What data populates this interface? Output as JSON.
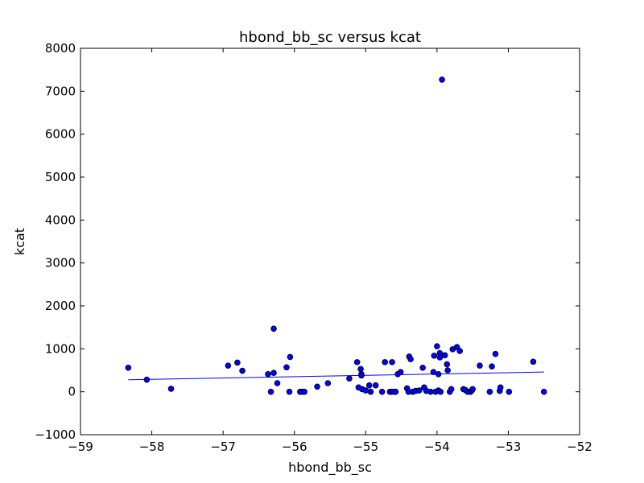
{
  "chart_data": {
    "type": "scatter",
    "title": "hbond_bb_sc versus kcat",
    "xlabel": "hbond_bb_sc",
    "ylabel": "kcat",
    "xlim": [
      -59,
      -52
    ],
    "ylim": [
      -1000,
      8000
    ],
    "xticks": [
      -59,
      -58,
      -57,
      -56,
      -55,
      -54,
      -53,
      -52
    ],
    "xtick_labels": [
      "−59",
      "−58",
      "−57",
      "−56",
      "−55",
      "−54",
      "−53",
      "−52"
    ],
    "yticks": [
      -1000,
      0,
      1000,
      2000,
      3000,
      4000,
      5000,
      6000,
      7000,
      8000
    ],
    "ytick_labels": [
      "−1000",
      "0",
      "1000",
      "2000",
      "3000",
      "4000",
      "5000",
      "6000",
      "7000",
      "8000"
    ],
    "grid": false,
    "marker_color": "#0000ff",
    "line_color": "#0000ff",
    "points": [
      [
        -58.33,
        560
      ],
      [
        -58.07,
        280
      ],
      [
        -57.73,
        70
      ],
      [
        -56.93,
        610
      ],
      [
        -56.8,
        680
      ],
      [
        -56.73,
        490
      ],
      [
        -56.37,
        410
      ],
      [
        -56.33,
        0
      ],
      [
        -56.29,
        1470
      ],
      [
        -56.29,
        440
      ],
      [
        -56.24,
        200
      ],
      [
        -56.11,
        570
      ],
      [
        -56.06,
        810
      ],
      [
        -56.07,
        0
      ],
      [
        -55.92,
        0
      ],
      [
        -55.89,
        0
      ],
      [
        -55.86,
        0
      ],
      [
        -55.68,
        120
      ],
      [
        -55.53,
        200
      ],
      [
        -55.23,
        310
      ],
      [
        -55.12,
        690
      ],
      [
        -55.1,
        100
      ],
      [
        -55.07,
        530
      ],
      [
        -55.06,
        410
      ],
      [
        -55.06,
        380
      ],
      [
        -55.05,
        60
      ],
      [
        -55.0,
        30
      ],
      [
        -54.95,
        150
      ],
      [
        -54.93,
        0
      ],
      [
        -54.86,
        150
      ],
      [
        -54.77,
        0
      ],
      [
        -54.73,
        690
      ],
      [
        -54.66,
        0
      ],
      [
        -54.64,
        0
      ],
      [
        -54.63,
        690
      ],
      [
        -54.6,
        0
      ],
      [
        -54.58,
        0
      ],
      [
        -54.55,
        410
      ],
      [
        -54.51,
        460
      ],
      [
        -54.42,
        80
      ],
      [
        -54.4,
        0
      ],
      [
        -54.39,
        820
      ],
      [
        -54.37,
        760
      ],
      [
        -54.34,
        0
      ],
      [
        -54.3,
        20
      ],
      [
        -54.25,
        30
      ],
      [
        -54.2,
        560
      ],
      [
        -54.18,
        100
      ],
      [
        -54.15,
        20
      ],
      [
        -54.09,
        0
      ],
      [
        -54.05,
        460
      ],
      [
        -54.04,
        840
      ],
      [
        -54.02,
        0
      ],
      [
        -54.0,
        1060
      ],
      [
        -53.98,
        410
      ],
      [
        -53.98,
        30
      ],
      [
        -53.96,
        900
      ],
      [
        -53.96,
        800
      ],
      [
        -53.95,
        0
      ],
      [
        -53.93,
        7270
      ],
      [
        -53.89,
        850
      ],
      [
        -53.86,
        640
      ],
      [
        -53.85,
        500
      ],
      [
        -53.82,
        0
      ],
      [
        -53.8,
        60
      ],
      [
        -53.78,
        990
      ],
      [
        -53.72,
        1040
      ],
      [
        -53.68,
        950
      ],
      [
        -53.63,
        60
      ],
      [
        -53.6,
        40
      ],
      [
        -53.57,
        0
      ],
      [
        -53.53,
        0
      ],
      [
        -53.51,
        30
      ],
      [
        -53.5,
        60
      ],
      [
        -53.4,
        610
      ],
      [
        -53.26,
        0
      ],
      [
        -53.23,
        590
      ],
      [
        -53.18,
        880
      ],
      [
        -53.12,
        20
      ],
      [
        -53.11,
        100
      ],
      [
        -52.99,
        0
      ],
      [
        -52.65,
        700
      ],
      [
        -52.5,
        0
      ]
    ],
    "fit_line": {
      "x": [
        -58.33,
        -52.5
      ],
      "y": [
        280,
        460
      ]
    }
  }
}
